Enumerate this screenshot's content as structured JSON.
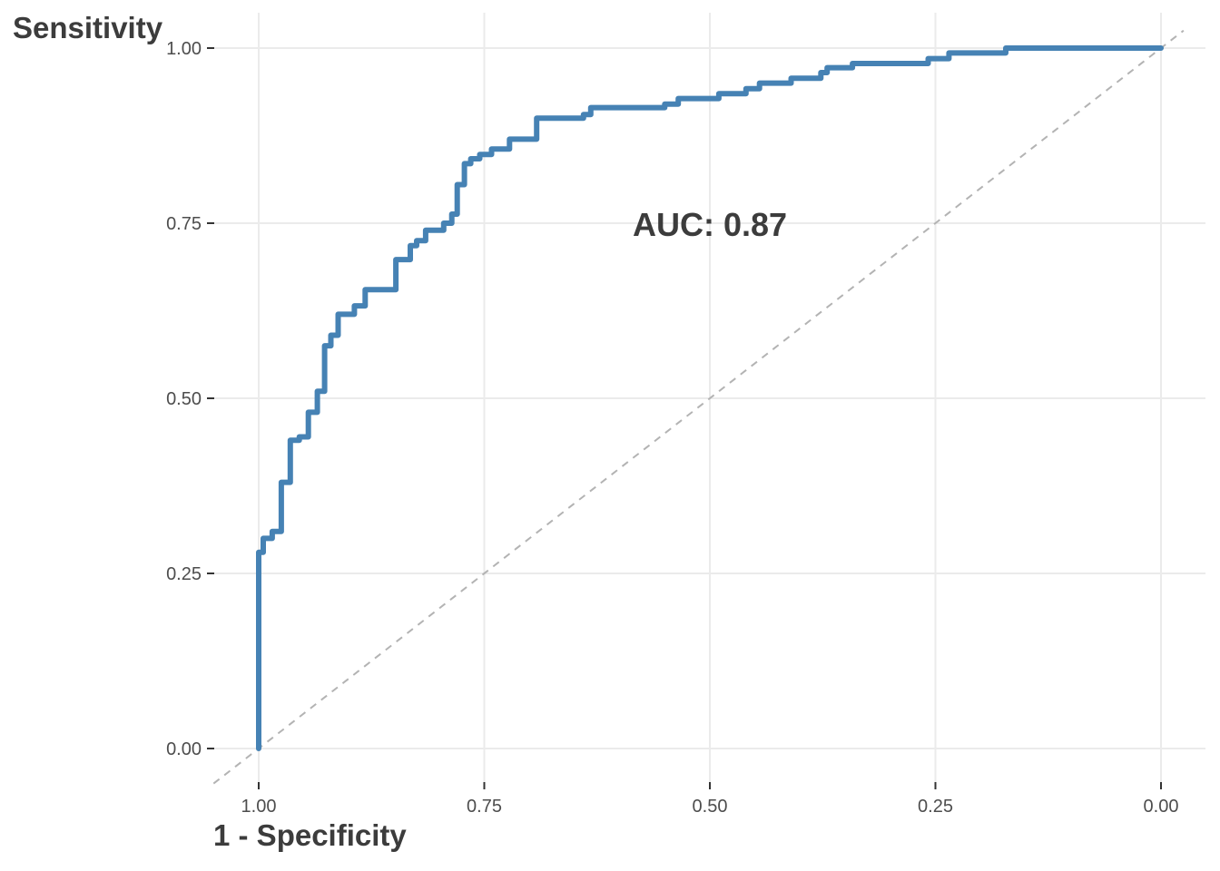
{
  "chart_data": {
    "type": "line",
    "title": "",
    "xlabel": "1 - Specificity",
    "ylabel": "Sensitivity",
    "x_reversed": true,
    "xlim": [
      1.0,
      0.0
    ],
    "ylim": [
      0.0,
      1.0
    ],
    "grid": true,
    "legend": "none",
    "x_ticks": [
      "1.00",
      "0.75",
      "0.50",
      "0.25",
      "0.00"
    ],
    "y_ticks": [
      "0.00",
      "0.25",
      "0.50",
      "0.75",
      "1.00"
    ],
    "annotation": "AUC: 0.87",
    "curve_color": "#4682b4",
    "chance_color": "#b3b3b3",
    "series": [
      {
        "x": [
          1.0,
          1.0,
          0.995,
          0.995,
          0.985,
          0.985,
          0.975,
          0.975,
          0.965,
          0.965,
          0.955,
          0.955,
          0.945,
          0.945,
          0.935,
          0.935,
          0.927,
          0.927,
          0.92,
          0.92,
          0.912,
          0.912,
          0.894,
          0.894,
          0.882,
          0.882,
          0.848,
          0.848,
          0.832,
          0.832,
          0.825,
          0.825,
          0.815,
          0.815,
          0.795,
          0.795,
          0.786,
          0.786,
          0.78,
          0.78,
          0.772,
          0.772,
          0.765,
          0.765,
          0.755,
          0.755,
          0.742,
          0.742,
          0.722,
          0.722,
          0.692,
          0.692,
          0.64,
          0.64,
          0.632,
          0.632,
          0.55,
          0.55,
          0.535,
          0.535,
          0.49,
          0.49,
          0.46,
          0.46,
          0.445,
          0.445,
          0.41,
          0.41,
          0.377,
          0.377,
          0.37,
          0.37,
          0.342,
          0.342,
          0.258,
          0.258,
          0.235,
          0.235,
          0.172,
          0.172,
          0.0
        ],
        "y": [
          0.0,
          0.28,
          0.28,
          0.3,
          0.3,
          0.31,
          0.31,
          0.38,
          0.38,
          0.44,
          0.44,
          0.445,
          0.445,
          0.48,
          0.48,
          0.51,
          0.51,
          0.575,
          0.575,
          0.59,
          0.59,
          0.62,
          0.62,
          0.632,
          0.632,
          0.655,
          0.655,
          0.698,
          0.698,
          0.718,
          0.718,
          0.725,
          0.725,
          0.74,
          0.74,
          0.75,
          0.75,
          0.763,
          0.763,
          0.805,
          0.805,
          0.835,
          0.835,
          0.842,
          0.842,
          0.848,
          0.848,
          0.856,
          0.856,
          0.87,
          0.87,
          0.9,
          0.9,
          0.905,
          0.905,
          0.915,
          0.915,
          0.92,
          0.92,
          0.928,
          0.928,
          0.935,
          0.935,
          0.942,
          0.942,
          0.95,
          0.95,
          0.957,
          0.957,
          0.965,
          0.965,
          0.972,
          0.972,
          0.978,
          0.978,
          0.985,
          0.985,
          0.993,
          0.993,
          1.0,
          1.0
        ]
      }
    ]
  }
}
